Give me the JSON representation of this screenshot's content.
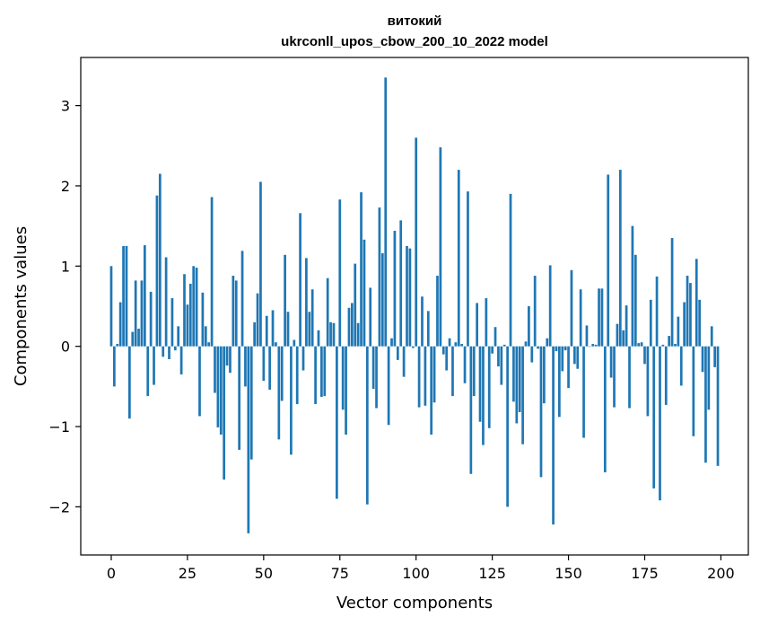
{
  "chart_data": {
    "type": "bar",
    "title": "витокий",
    "subtitle": "ukrconll_upos_cbow_200_10_2022 model",
    "xlabel": "Vector components",
    "ylabel": "Components values",
    "xlim": [
      -10,
      209
    ],
    "ylim": [
      -2.6,
      3.6
    ],
    "xticks": [
      0,
      25,
      50,
      75,
      100,
      125,
      150,
      175,
      200
    ],
    "yticks": [
      -2,
      -1,
      0,
      1,
      2,
      3
    ],
    "ytick_labels": [
      "−2",
      "−1",
      "0",
      "1",
      "2",
      "3"
    ],
    "bar_color": "#1f77b4",
    "grid": false,
    "legend": false,
    "series": [
      {
        "values": [
          1.0,
          -0.5,
          0.03,
          0.55,
          1.25,
          1.25,
          -0.9,
          0.18,
          0.82,
          0.22,
          0.82,
          1.26,
          -0.62,
          0.68,
          -0.48,
          1.88,
          2.15,
          -0.13,
          1.11,
          -0.16,
          0.6,
          -0.05,
          0.25,
          -0.35,
          0.9,
          0.52,
          0.78,
          1.0,
          0.98,
          -0.87,
          0.67,
          0.25,
          0.05,
          1.86,
          -0.58,
          -1.01,
          -1.1,
          -1.66,
          -0.24,
          -0.33,
          0.88,
          0.82,
          -1.29,
          1.19,
          -0.5,
          -2.33,
          -1.41,
          0.3,
          0.66,
          2.05,
          -0.43,
          0.38,
          -0.54,
          0.45,
          0.05,
          -1.16,
          -0.68,
          1.14,
          0.43,
          -1.35,
          0.08,
          -0.72,
          1.66,
          -0.3,
          1.1,
          0.43,
          0.71,
          -0.72,
          0.2,
          -0.63,
          -0.62,
          0.85,
          0.3,
          0.29,
          -1.9,
          1.83,
          -0.79,
          -1.1,
          0.48,
          0.54,
          1.03,
          0.29,
          1.92,
          1.33,
          -1.97,
          0.73,
          -0.53,
          -0.77,
          1.73,
          1.16,
          3.35,
          -0.98,
          0.1,
          1.44,
          -0.17,
          1.57,
          -0.38,
          1.25,
          1.22,
          -0.02,
          2.6,
          -0.76,
          0.62,
          -0.74,
          0.44,
          -1.1,
          -0.7,
          0.88,
          2.48,
          -0.1,
          -0.3,
          0.1,
          -0.62,
          0.05,
          2.2,
          0.03,
          -0.46,
          1.93,
          -1.59,
          -0.62,
          0.54,
          -0.94,
          -1.23,
          0.6,
          -1.02,
          -0.09,
          0.24,
          -0.25,
          -0.48,
          0.02,
          -2.0,
          1.9,
          -0.69,
          -0.96,
          -0.82,
          -1.22,
          0.06,
          0.5,
          -0.2,
          0.88,
          -0.03,
          -1.63,
          -0.71,
          0.1,
          1.01,
          -2.22,
          -0.06,
          -0.88,
          -0.31,
          -0.05,
          -0.52,
          0.95,
          -0.22,
          -0.28,
          0.71,
          -1.14,
          0.26,
          0.0,
          0.03,
          0.02,
          0.72,
          0.72,
          -1.57,
          2.14,
          -0.39,
          -0.76,
          0.28,
          2.2,
          0.2,
          0.51,
          -0.77,
          1.5,
          1.14,
          0.04,
          0.05,
          -0.22,
          -0.87,
          0.58,
          -1.77,
          0.87,
          -1.92,
          0.02,
          -0.73,
          0.13,
          1.35,
          0.03,
          0.37,
          -0.49,
          0.55,
          0.88,
          0.79,
          -1.12,
          1.09,
          0.58,
          -0.32,
          -1.45,
          -0.79,
          0.25,
          -0.26,
          -1.49
        ]
      }
    ]
  }
}
